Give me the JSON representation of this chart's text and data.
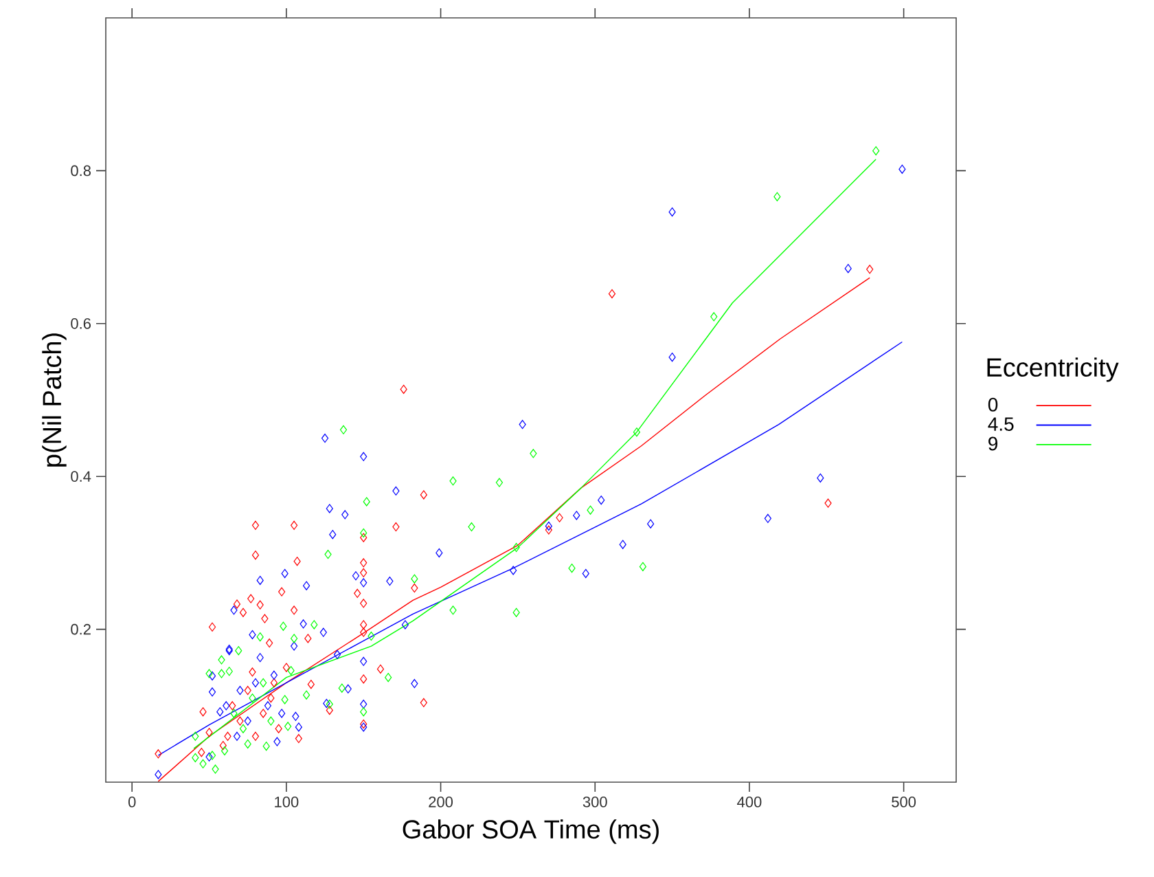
{
  "chart_data": {
    "type": "scatter",
    "xlabel": "Gabor SOA Time (ms)",
    "ylabel": "p(Nil Patch)",
    "legend_title": "Eccentricity",
    "legend": "right",
    "marker": "diamond",
    "xlim": [
      -17,
      534
    ],
    "ylim": [
      0,
      1.0
    ],
    "xticks": [
      0,
      100,
      200,
      300,
      400,
      500
    ],
    "yticks": [
      0.2,
      0.4,
      0.6,
      0.8
    ],
    "series": [
      {
        "name": "0",
        "color": "#ff0000",
        "x": [
          17,
          52,
          46,
          50,
          45,
          59,
          72,
          68,
          77,
          80,
          80,
          83,
          86,
          89,
          78,
          97,
          105,
          107,
          105,
          114,
          116,
          108,
          128,
          146,
          150,
          150,
          150,
          150,
          150,
          150,
          150,
          150,
          161,
          171,
          176,
          189,
          189,
          183,
          270,
          277,
          311,
          451,
          478,
          65,
          70,
          75,
          85,
          90,
          95,
          100,
          62,
          80,
          92
        ],
        "values": [
          0.037,
          0.203,
          0.092,
          0.065,
          0.039,
          0.048,
          0.222,
          0.233,
          0.24,
          0.336,
          0.297,
          0.232,
          0.214,
          0.182,
          0.144,
          0.249,
          0.336,
          0.289,
          0.225,
          0.188,
          0.128,
          0.057,
          0.094,
          0.247,
          0.32,
          0.287,
          0.274,
          0.234,
          0.206,
          0.196,
          0.135,
          0.076,
          0.148,
          0.334,
          0.514,
          0.376,
          0.104,
          0.254,
          0.33,
          0.346,
          0.639,
          0.365,
          0.671,
          0.1,
          0.08,
          0.12,
          0.09,
          0.11,
          0.07,
          0.15,
          0.06,
          0.06,
          0.13
        ]
      },
      {
        "name": "4.5",
        "color": "#0000ff",
        "x": [
          17,
          52,
          63,
          52,
          57,
          61,
          50,
          66,
          78,
          83,
          83,
          63,
          94,
          99,
          105,
          106,
          108,
          111,
          113,
          124,
          125,
          126,
          128,
          130,
          133,
          138,
          140,
          145,
          150,
          150,
          150,
          150,
          150,
          167,
          171,
          177,
          183,
          199,
          247,
          253,
          270,
          288,
          294,
          304,
          318,
          336,
          350,
          350,
          412,
          446,
          464,
          499,
          70,
          75,
          88,
          92,
          68,
          80,
          97
        ],
        "values": [
          0.01,
          0.118,
          0.172,
          0.139,
          0.092,
          0.1,
          0.033,
          0.225,
          0.193,
          0.264,
          0.163,
          0.174,
          0.053,
          0.273,
          0.178,
          0.086,
          0.072,
          0.207,
          0.257,
          0.196,
          0.45,
          0.103,
          0.358,
          0.324,
          0.167,
          0.35,
          0.122,
          0.27,
          0.426,
          0.261,
          0.158,
          0.102,
          0.072,
          0.263,
          0.381,
          0.206,
          0.129,
          0.3,
          0.277,
          0.468,
          0.335,
          0.349,
          0.273,
          0.369,
          0.311,
          0.338,
          0.746,
          0.556,
          0.345,
          0.398,
          0.672,
          0.802,
          0.12,
          0.08,
          0.1,
          0.14,
          0.06,
          0.13,
          0.09
        ]
      },
      {
        "name": "9",
        "color": "#00ff00",
        "x": [
          41,
          50,
          58,
          63,
          41,
          46,
          54,
          52,
          60,
          69,
          58,
          83,
          87,
          98,
          99,
          101,
          103,
          105,
          113,
          118,
          127,
          128,
          136,
          137,
          150,
          150,
          152,
          155,
          166,
          183,
          208,
          208,
          220,
          238,
          249,
          249,
          260,
          285,
          297,
          327,
          331,
          377,
          418,
          482,
          66,
          72,
          78,
          85,
          90,
          75
        ],
        "values": [
          0.06,
          0.142,
          0.16,
          0.145,
          0.032,
          0.024,
          0.017,
          0.035,
          0.041,
          0.172,
          0.142,
          0.19,
          0.047,
          0.204,
          0.108,
          0.073,
          0.146,
          0.188,
          0.114,
          0.206,
          0.298,
          0.102,
          0.123,
          0.461,
          0.326,
          0.092,
          0.367,
          0.191,
          0.137,
          0.266,
          0.394,
          0.225,
          0.334,
          0.392,
          0.307,
          0.222,
          0.43,
          0.28,
          0.356,
          0.458,
          0.282,
          0.609,
          0.766,
          0.826,
          0.09,
          0.07,
          0.11,
          0.13,
          0.08,
          0.05
        ]
      },
      {
        "type": "line",
        "marker": "none",
        "color": "#ff0000",
        "x": [
          17,
          50,
          100,
          150,
          182,
          200,
          250,
          291,
          330,
          372,
          420,
          478
        ],
        "values": [
          0.001,
          0.06,
          0.13,
          0.195,
          0.238,
          0.255,
          0.31,
          0.385,
          0.44,
          0.507,
          0.58,
          0.66
        ]
      },
      {
        "type": "line",
        "marker": "none",
        "color": "#0000ff",
        "x": [
          17,
          50,
          100,
          150,
          182,
          247,
          330,
          419,
          499
        ],
        "values": [
          0.035,
          0.075,
          0.13,
          0.185,
          0.22,
          0.28,
          0.364,
          0.468,
          0.576
        ]
      },
      {
        "type": "line",
        "marker": "none",
        "color": "#00ff00",
        "x": [
          40,
          100,
          155,
          182,
          250,
          291,
          327,
          389,
          482
        ],
        "values": [
          0.044,
          0.137,
          0.178,
          0.211,
          0.307,
          0.385,
          0.458,
          0.627,
          0.815
        ]
      }
    ]
  }
}
